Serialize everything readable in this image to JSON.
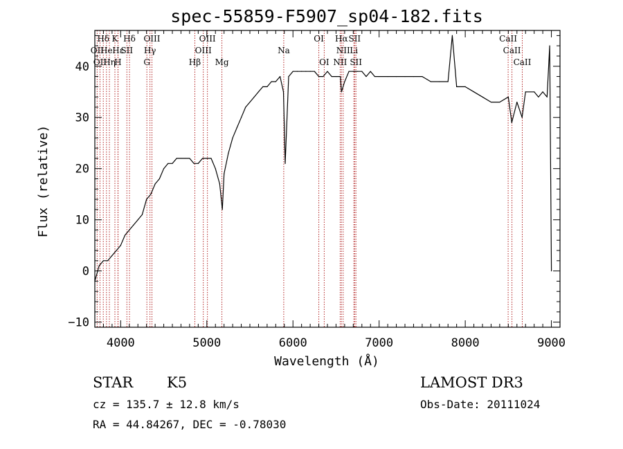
{
  "chart_data": {
    "type": "line",
    "title": "spec-55859-F5907_sp04-182.fits",
    "xlabel": "Wavelength (Å)",
    "ylabel": "Flux (relative)",
    "xlim": [
      3700,
      9100
    ],
    "ylim": [
      -11,
      47
    ],
    "xticks": [
      4000,
      5000,
      6000,
      7000,
      8000,
      9000
    ],
    "yticks": [
      -10,
      0,
      10,
      20,
      30,
      40
    ],
    "x_minor_step": 100,
    "y_minor_step": 2,
    "line_color": "#000000",
    "marker_color": "#b22222",
    "series": [
      {
        "x": [
          3700,
          3750,
          3800,
          3850,
          3900,
          3950,
          4000,
          4050,
          4100,
          4150,
          4200,
          4250,
          4300,
          4350,
          4400,
          4450,
          4500,
          4550,
          4600,
          4650,
          4700,
          4750,
          4800,
          4850,
          4900,
          4950,
          5000,
          5050,
          5100,
          5150,
          5180,
          5200,
          5250,
          5300,
          5350,
          5400,
          5450,
          5500,
          5550,
          5600,
          5650,
          5700,
          5750,
          5800,
          5850,
          5890,
          5910,
          5950,
          6000,
          6050,
          6100,
          6150,
          6200,
          6250,
          6300,
          6350,
          6400,
          6450,
          6500,
          6550,
          6563,
          6600,
          6650,
          6700,
          6750,
          6800,
          6850,
          6900,
          6950,
          7000,
          7100,
          7200,
          7300,
          7400,
          7500,
          7600,
          7700,
          7800,
          7850,
          7900,
          8000,
          8100,
          8200,
          8300,
          8400,
          8500,
          8540,
          8600,
          8660,
          8700,
          8800,
          8850,
          8900,
          8950,
          8980,
          9000
        ],
        "y": [
          -2,
          1,
          2,
          2,
          3,
          4,
          5,
          7,
          8,
          9,
          10,
          11,
          14,
          15,
          17,
          18,
          20,
          21,
          21,
          22,
          22,
          22,
          22,
          21,
          21,
          22,
          22,
          22,
          20,
          17,
          12,
          19,
          23,
          26,
          28,
          30,
          32,
          33,
          34,
          35,
          36,
          36,
          37,
          37,
          38,
          35,
          21,
          38,
          39,
          39,
          39,
          39,
          39,
          39,
          38,
          38,
          39,
          38,
          38,
          38,
          35,
          37,
          39,
          39,
          39,
          39,
          38,
          39,
          38,
          38,
          38,
          38,
          38,
          38,
          38,
          37,
          37,
          37,
          46,
          36,
          36,
          35,
          34,
          33,
          33,
          34,
          29,
          33,
          30,
          35,
          35,
          34,
          35,
          34,
          44,
          0
        ]
      }
    ],
    "spectral_lines": [
      {
        "wl": 3727,
        "label": "OII",
        "row": 2
      },
      {
        "wl": 3760,
        "label": "OII",
        "row": 3
      },
      {
        "wl": 3798,
        "label": "Hδ",
        "row": 1
      },
      {
        "wl": 3835,
        "label": "He",
        "row": 2
      },
      {
        "wl": 3869,
        "label": "Hη",
        "row": 3
      },
      {
        "wl": 3933,
        "label": "K",
        "row": 1
      },
      {
        "wl": 3968,
        "label": "H",
        "row": 3
      },
      {
        "wl": 3970,
        "label": "Hε",
        "row": 2
      },
      {
        "wl": 4072,
        "label": "SII",
        "row": 2
      },
      {
        "wl": 4102,
        "label": "Hδ",
        "row": 1
      },
      {
        "wl": 4304,
        "label": "G",
        "row": 3
      },
      {
        "wl": 4340,
        "label": "Hγ",
        "row": 2
      },
      {
        "wl": 4363,
        "label": "OIII",
        "row": 1
      },
      {
        "wl": 4861,
        "label": "Hβ",
        "row": 3
      },
      {
        "wl": 4959,
        "label": "OIII",
        "row": 2
      },
      {
        "wl": 5007,
        "label": "OIII",
        "row": 1
      },
      {
        "wl": 5175,
        "label": "Mg",
        "row": 3
      },
      {
        "wl": 5893,
        "label": "Na",
        "row": 2
      },
      {
        "wl": 6300,
        "label": "OI",
        "row": 1
      },
      {
        "wl": 6363,
        "label": "OI",
        "row": 3
      },
      {
        "wl": 6548,
        "label": "NII",
        "row": 3
      },
      {
        "wl": 6563,
        "label": "Hα",
        "row": 1
      },
      {
        "wl": 6583,
        "label": "NII",
        "row": 2
      },
      {
        "wl": 6707,
        "label": "Li",
        "row": 2
      },
      {
        "wl": 6716,
        "label": "SII",
        "row": 1
      },
      {
        "wl": 6731,
        "label": "SII",
        "row": 3
      },
      {
        "wl": 8498,
        "label": "CaII",
        "row": 1
      },
      {
        "wl": 8542,
        "label": "CaII",
        "row": 2
      },
      {
        "wl": 8662,
        "label": "CaII",
        "row": 3
      }
    ]
  },
  "info": {
    "class_label": "STAR",
    "subclass": "K5",
    "survey": "LAMOST DR3",
    "redshift": "cz = 135.7 ± 12.8 km/s",
    "obs_date": "Obs-Date: 20111024",
    "coords": "RA =  44.84267, DEC =  -0.78030"
  }
}
